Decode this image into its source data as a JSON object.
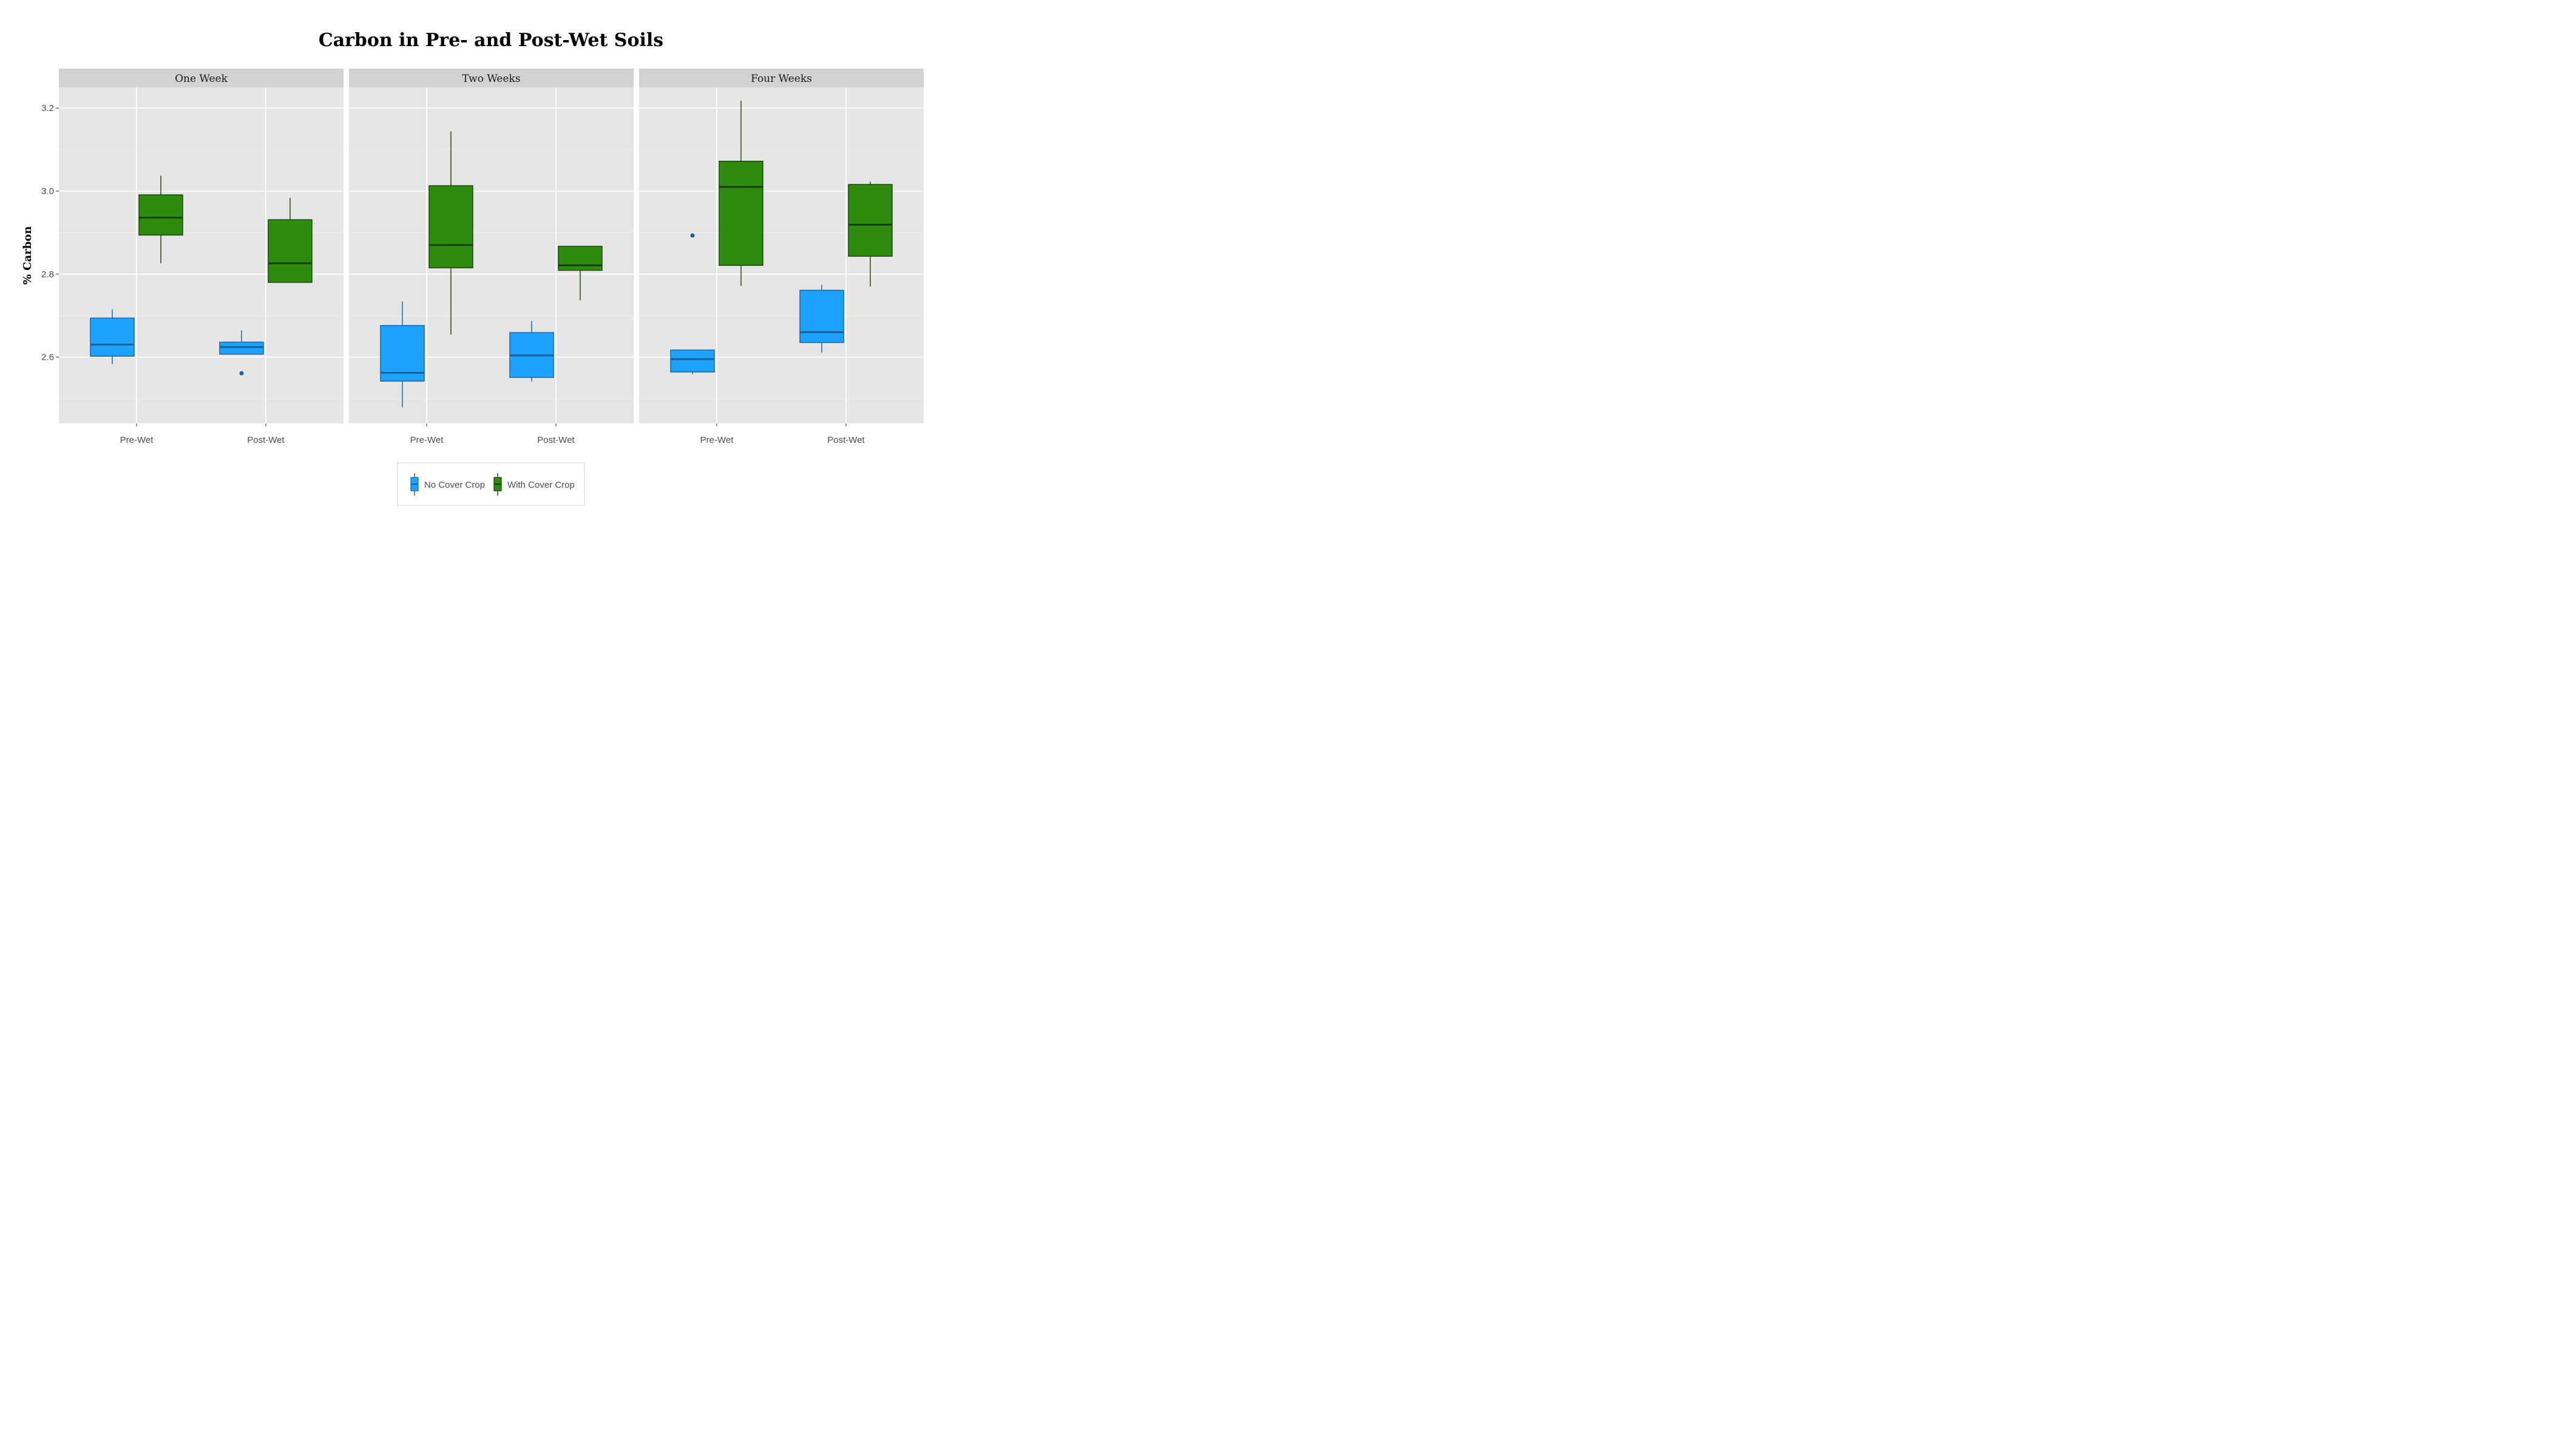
{
  "chart_data": {
    "type": "boxplot",
    "title": "Carbon in Pre- and Post-Wet Soils",
    "xlabel": "",
    "ylabel": "% Carbon",
    "ylim": [
      2.44,
      3.25
    ],
    "yticks": [
      "2.6",
      "2.8",
      "3.0",
      "3.2"
    ],
    "categories": [
      "Pre-Wet",
      "Post-Wet"
    ],
    "facets": [
      "One Week",
      "Two Weeks",
      "Four Weeks"
    ],
    "legend_position": "bottom",
    "grid": true,
    "series": [
      {
        "name": "No Cover Crop",
        "fill": "#1ea2ff",
        "stroke": "#15629b",
        "boxes": [
          [
            {
              "whisker_low": 2.583,
              "q1": 2.602,
              "median": 2.63,
              "q3": 2.694,
              "whisker_high": 2.715,
              "outliers": []
            },
            {
              "whisker_low": 2.607,
              "q1": 2.607,
              "median": 2.624,
              "q3": 2.636,
              "whisker_high": 2.664,
              "outliers": [
                2.561
              ]
            }
          ],
          [
            {
              "whisker_low": 2.479,
              "q1": 2.542,
              "median": 2.562,
              "q3": 2.676,
              "whisker_high": 2.734,
              "outliers": []
            },
            {
              "whisker_low": 2.541,
              "q1": 2.551,
              "median": 2.604,
              "q3": 2.659,
              "whisker_high": 2.687,
              "outliers": []
            }
          ],
          [
            {
              "whisker_low": 2.559,
              "q1": 2.564,
              "median": 2.595,
              "q3": 2.617,
              "whisker_high": 2.617,
              "outliers": [
                2.893
              ]
            },
            {
              "whisker_low": 2.611,
              "q1": 2.635,
              "median": 2.66,
              "q3": 2.761,
              "whisker_high": 2.774,
              "outliers": []
            }
          ]
        ]
      },
      {
        "name": "With Cover Crop",
        "fill": "#2e8b0d",
        "stroke": "#163f08",
        "boxes": [
          [
            {
              "whisker_low": 2.826,
              "q1": 2.894,
              "median": 2.936,
              "q3": 2.991,
              "whisker_high": 3.037,
              "outliers": []
            },
            {
              "whisker_low": 2.78,
              "q1": 2.78,
              "median": 2.826,
              "q3": 2.931,
              "whisker_high": 2.984,
              "outliers": []
            }
          ],
          [
            {
              "whisker_low": 2.654,
              "q1": 2.815,
              "median": 2.87,
              "q3": 3.013,
              "whisker_high": 3.144,
              "outliers": []
            },
            {
              "whisker_low": 2.737,
              "q1": 2.809,
              "median": 2.821,
              "q3": 2.867,
              "whisker_high": 2.867,
              "outliers": []
            }
          ],
          [
            {
              "whisker_low": 2.772,
              "q1": 2.821,
              "median": 3.01,
              "q3": 3.072,
              "whisker_high": 3.218,
              "outliers": []
            },
            {
              "whisker_low": 2.77,
              "q1": 2.843,
              "median": 2.919,
              "q3": 3.016,
              "whisker_high": 3.023,
              "outliers": []
            }
          ]
        ]
      }
    ]
  }
}
